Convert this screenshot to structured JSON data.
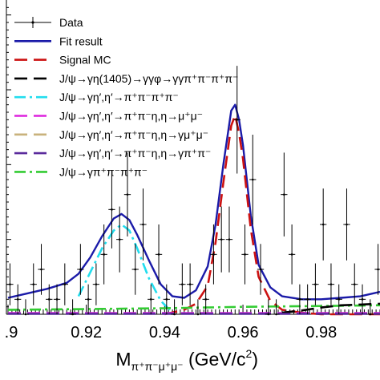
{
  "chart_data": {
    "type": "line",
    "title": "",
    "xlabel": {
      "main": "M",
      "sub": "π⁺π⁻μ⁺μ⁻",
      "unit": " (GeV/c",
      "sup": "2",
      "close": ")"
    },
    "ylabel": "",
    "xlim": [
      0.9,
      0.995
    ],
    "ylim": [
      0,
      21
    ],
    "log_scale": false,
    "grid": false,
    "legend_position": "top-left",
    "x_ticks": [
      ".9",
      "0.92",
      "0.94",
      "0.96",
      "0.98"
    ],
    "x_tick_values": [
      0.9,
      0.92,
      0.94,
      0.96,
      0.98
    ],
    "legend": [
      {
        "label": "Data",
        "color": "#000000",
        "style": "points"
      },
      {
        "label": "Fit result",
        "color": "#1a1aa8",
        "style": "solid"
      },
      {
        "label": "Signal MC",
        "color": "#cc1111",
        "style": "dash"
      },
      {
        "label": "J/ψ→γη(1405)→γγφ→γγπ⁺π⁻π⁺π⁻",
        "color": "#000000",
        "style": "dash"
      },
      {
        "label": "J/ψ→γη′,η′→π⁺π⁻π⁺π⁻",
        "color": "#22ddee",
        "style": "dashdot"
      },
      {
        "label": "J/ψ→γη′,η′→π⁺π⁻η,η→μ⁺μ⁻",
        "color": "#dd22dd",
        "style": "dash"
      },
      {
        "label": "J/ψ→γη′,η′→π⁺π⁻η,η→γμ⁺μ⁻",
        "color": "#c9b27c",
        "style": "dash"
      },
      {
        "label": "J/ψ→γη′,η′→π⁺π⁻η,η→γπ⁺π⁻",
        "color": "#5a2a9c",
        "style": "dash"
      },
      {
        "label": "J/ψ→γπ⁺π⁻π⁺π⁻",
        "color": "#33cc33",
        "style": "dashdot"
      }
    ],
    "series": [
      {
        "name": "Data",
        "x": [
          0.9005,
          0.9025,
          0.9045,
          0.9065,
          0.9085,
          0.9105,
          0.9125,
          0.9145,
          0.9165,
          0.9185,
          0.9205,
          0.9225,
          0.9245,
          0.9265,
          0.9285,
          0.9305,
          0.9325,
          0.9345,
          0.9365,
          0.9385,
          0.9405,
          0.9425,
          0.9445,
          0.9465,
          0.9485,
          0.9505,
          0.9525,
          0.9545,
          0.9565,
          0.9585,
          0.9605,
          0.9625,
          0.9645,
          0.9665,
          0.9685,
          0.9705,
          0.9725,
          0.9745,
          0.9765,
          0.9785,
          0.9805,
          0.9825,
          0.9845,
          0.9865,
          0.9885,
          0.9905,
          0.9925,
          0.9945
        ],
        "y": [
          2,
          1,
          0,
          2,
          3,
          1,
          1,
          2,
          0,
          3,
          1,
          2,
          4,
          7,
          5,
          8,
          3,
          6,
          1,
          4,
          1,
          0,
          2,
          2,
          0,
          1,
          4,
          5,
          5,
          13,
          4,
          9,
          3,
          0,
          0,
          8,
          4,
          1,
          1,
          2,
          6,
          2,
          1,
          6,
          2,
          1,
          0,
          3
        ],
        "yerr": [
          1.4,
          1.0,
          1.0,
          1.4,
          1.7,
          1.0,
          1.0,
          1.4,
          1.0,
          1.7,
          1.0,
          1.4,
          2.0,
          2.6,
          2.2,
          2.8,
          1.7,
          2.4,
          1.0,
          2.0,
          1.0,
          1.0,
          1.4,
          1.4,
          1.0,
          1.0,
          2.0,
          2.2,
          2.2,
          3.6,
          2.0,
          3.0,
          1.7,
          1.0,
          1.0,
          2.8,
          2.0,
          1.0,
          1.0,
          1.4,
          2.4,
          1.4,
          1.0,
          2.4,
          1.4,
          1.0,
          1.0,
          1.7
        ]
      },
      {
        "name": "Fit result",
        "x": [
          0.9,
          0.905,
          0.91,
          0.915,
          0.918,
          0.921,
          0.924,
          0.927,
          0.929,
          0.931,
          0.933,
          0.936,
          0.939,
          0.942,
          0.945,
          0.948,
          0.951,
          0.953,
          0.955,
          0.957,
          0.958,
          0.959,
          0.96,
          0.962,
          0.964,
          0.967,
          0.97,
          0.975,
          0.98,
          0.985,
          0.99,
          0.995
        ],
        "y": [
          1.1,
          1.4,
          1.7,
          2.1,
          2.7,
          3.8,
          5.2,
          6.4,
          6.7,
          6.3,
          5.3,
          3.6,
          2.0,
          1.2,
          1.1,
          1.6,
          3.2,
          6.0,
          10.0,
          13.6,
          14.0,
          13.0,
          11.3,
          6.6,
          3.3,
          1.8,
          1.2,
          1.0,
          1.0,
          1.1,
          1.2,
          1.5
        ]
      },
      {
        "name": "Signal MC",
        "x": [
          0.94,
          0.945,
          0.948,
          0.951,
          0.953,
          0.955,
          0.957,
          0.958,
          0.959,
          0.96,
          0.962,
          0.964,
          0.967,
          0.97,
          0.975,
          0.98,
          0.985,
          0.995
        ],
        "y": [
          0.0,
          0.3,
          0.7,
          1.9,
          4.8,
          8.8,
          12.6,
          13.3,
          12.1,
          10.4,
          5.7,
          2.5,
          0.9,
          0.3,
          0.1,
          0.0,
          0.0,
          0.0
        ]
      },
      {
        "name": "J/ψ→γη′,η′→π⁺π⁻π⁺π⁻",
        "x": [
          0.918,
          0.921,
          0.924,
          0.927,
          0.929,
          0.931,
          0.933,
          0.936,
          0.939,
          0.942
        ],
        "y": [
          1.2,
          2.8,
          4.4,
          5.6,
          6.0,
          5.6,
          4.4,
          2.4,
          0.9,
          0.1
        ]
      },
      {
        "name": "J/ψ→γπ⁺π⁻π⁺π⁻",
        "x": [
          0.9,
          0.92,
          0.94,
          0.96,
          0.98,
          0.995
        ],
        "y": [
          0.3,
          0.35,
          0.4,
          0.5,
          0.55,
          0.6
        ]
      },
      {
        "name": "J/ψ→γη′,η′→π⁺π⁻η,η→μ⁺μ⁻",
        "x": [
          0.9,
          0.995
        ],
        "y": [
          0.08,
          0.08
        ]
      },
      {
        "name": "J/ψ→γη(1405)→γγφ→γγπ⁺π⁻π⁺π⁻",
        "x": [
          0.97,
          0.975,
          0.98,
          0.985,
          0.99,
          0.995
        ],
        "y": [
          0.1,
          0.25,
          0.45,
          0.6,
          0.65,
          0.7
        ]
      },
      {
        "name": "J/ψ→γη′,η′→π⁺π⁻η,η→γπ⁺π⁻",
        "x": [
          0.9,
          0.995
        ],
        "y": [
          0.03,
          0.03
        ]
      }
    ]
  }
}
